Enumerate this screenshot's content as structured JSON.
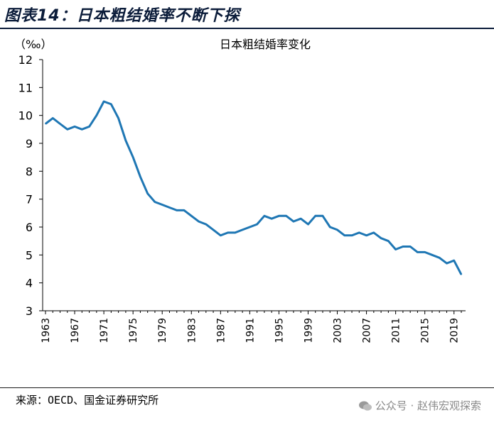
{
  "figure": {
    "title": "图表14：日本粗结婚率不断下探",
    "source": "来源：OECD、国金证券研究所",
    "watermark": "公众号 · 赵伟宏观探索"
  },
  "colors": {
    "line": "#1f77b4",
    "title": "#0b1c3a"
  },
  "chart_data": {
    "type": "line",
    "title": "日本粗结婚率变化",
    "ylabel": "（‰）",
    "xlabel": "",
    "ylim": [
      3,
      12
    ],
    "yticks": [
      3,
      4,
      5,
      6,
      7,
      8,
      9,
      10,
      11,
      12
    ],
    "xlim": [
      1963,
      2020
    ],
    "xticks": [
      1963,
      1967,
      1971,
      1975,
      1979,
      1983,
      1987,
      1991,
      1995,
      1999,
      2003,
      2007,
      2011,
      2015,
      2019
    ],
    "grid": false,
    "series": [
      {
        "x": [
          1963,
          1964,
          1965,
          1966,
          1967,
          1968,
          1969,
          1970,
          1971,
          1972,
          1973,
          1974,
          1975,
          1976,
          1977,
          1978,
          1979,
          1980,
          1981,
          1982,
          1983,
          1984,
          1985,
          1986,
          1987,
          1988,
          1989,
          1990,
          1991,
          1992,
          1993,
          1994,
          1995,
          1996,
          1997,
          1998,
          1999,
          2000,
          2001,
          2002,
          2003,
          2004,
          2005,
          2006,
          2007,
          2008,
          2009,
          2010,
          2011,
          2012,
          2013,
          2014,
          2015,
          2016,
          2017,
          2018,
          2019,
          2020
        ],
        "values": [
          9.7,
          9.9,
          9.7,
          9.5,
          9.6,
          9.5,
          9.6,
          10.0,
          10.5,
          10.4,
          9.9,
          9.1,
          8.5,
          7.8,
          7.2,
          6.9,
          6.8,
          6.7,
          6.6,
          6.6,
          6.4,
          6.2,
          6.1,
          5.9,
          5.7,
          5.8,
          5.8,
          5.9,
          6.0,
          6.1,
          6.4,
          6.3,
          6.4,
          6.4,
          6.2,
          6.3,
          6.1,
          6.4,
          6.4,
          6.0,
          5.9,
          5.7,
          5.7,
          5.8,
          5.7,
          5.8,
          5.6,
          5.5,
          5.2,
          5.3,
          5.3,
          5.1,
          5.1,
          5.0,
          4.9,
          4.7,
          4.8,
          4.3
        ]
      }
    ]
  }
}
